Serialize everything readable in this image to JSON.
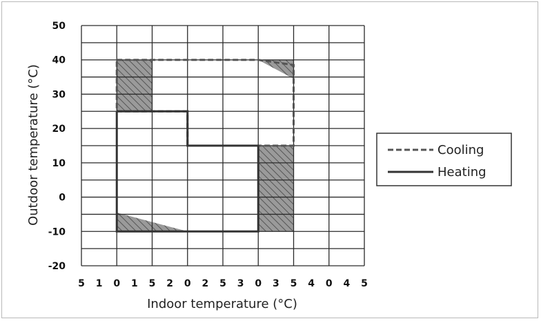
{
  "chart_data": {
    "type": "area",
    "xlabel": "Indoor temperature (°C)",
    "ylabel": "Outdoor temperature (°C)",
    "ylim": [
      -20,
      50
    ],
    "yticks": [
      50,
      40,
      30,
      20,
      10,
      0,
      -10,
      -20
    ],
    "grid": true,
    "x_columns": 8,
    "xtick_labels": [
      "5",
      "1",
      "0",
      "1",
      "5",
      "2",
      "0",
      "2",
      "5",
      "3",
      "0",
      "3",
      "5",
      "4",
      "0",
      "4",
      "5"
    ],
    "legend_position": "right",
    "series": [
      {
        "name": "Cooling",
        "style": "dashed",
        "points": [
          [
            1,
            40
          ],
          [
            5,
            40
          ],
          [
            6,
            38.5
          ],
          [
            6,
            15
          ],
          [
            3,
            15
          ],
          [
            3,
            25
          ],
          [
            1,
            25
          ],
          [
            1,
            40
          ]
        ]
      },
      {
        "name": "Heating",
        "style": "solid",
        "points": [
          [
            1,
            25
          ],
          [
            3,
            25
          ],
          [
            3,
            15
          ],
          [
            5,
            15
          ],
          [
            5,
            -10
          ],
          [
            3,
            -10
          ],
          [
            1,
            -10
          ],
          [
            1,
            25
          ]
        ]
      }
    ],
    "hatched_regions": [
      [
        [
          1,
          40
        ],
        [
          2,
          40
        ],
        [
          2,
          25
        ],
        [
          1,
          25
        ]
      ],
      [
        [
          5,
          40
        ],
        [
          6,
          40
        ],
        [
          6,
          34.5
        ]
      ],
      [
        [
          5,
          15
        ],
        [
          6,
          15
        ],
        [
          6,
          -10
        ],
        [
          5,
          -10
        ]
      ],
      [
        [
          1,
          -4.5
        ],
        [
          3,
          -10
        ],
        [
          1,
          -10
        ]
      ]
    ]
  },
  "colors": {
    "grid": "#2a2a2a",
    "region_fill": "#9a9a9a",
    "hatch": "#555555",
    "cooling": "#555555",
    "heating": "#333333"
  }
}
